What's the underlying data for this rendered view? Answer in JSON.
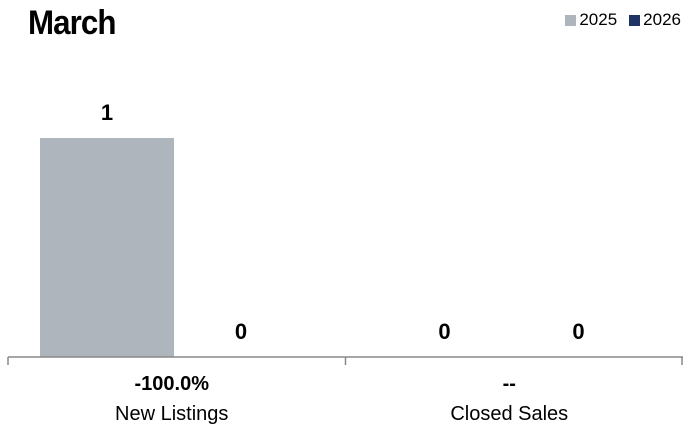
{
  "chart_data": {
    "type": "bar",
    "title": "March",
    "categories": [
      "New Listings",
      "Closed Sales"
    ],
    "category_changes": [
      "-100.0%",
      "--"
    ],
    "series": [
      {
        "name": "2025",
        "color": "#aeb5bc",
        "values": [
          1,
          0
        ]
      },
      {
        "name": "2026",
        "color": "#1f3364",
        "values": [
          0,
          0
        ]
      }
    ],
    "ylim": [
      0,
      1
    ],
    "grid": false,
    "legend_position": "top-right"
  }
}
